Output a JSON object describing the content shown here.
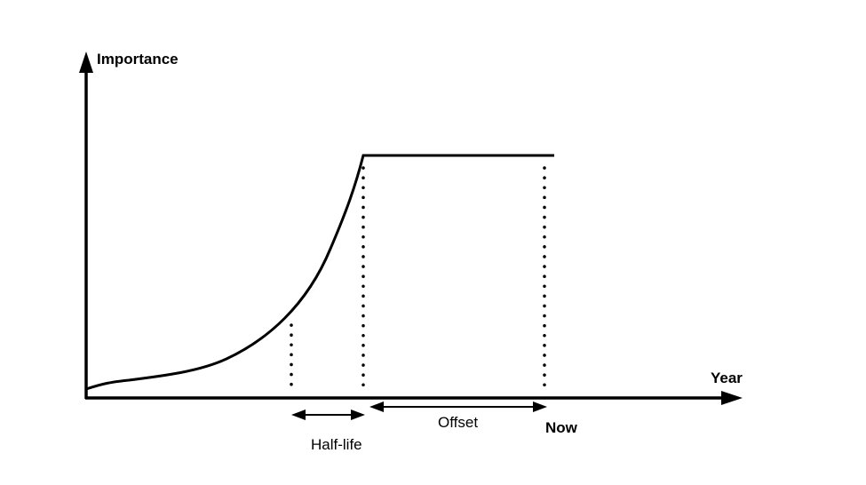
{
  "diagram": {
    "y_axis_label": "Importance",
    "x_axis_label": "Year",
    "half_life_label": "Half-life",
    "offset_label": "Offset",
    "now_label": "Now"
  },
  "colors": {
    "stroke": "#000000",
    "background": "#ffffff"
  }
}
